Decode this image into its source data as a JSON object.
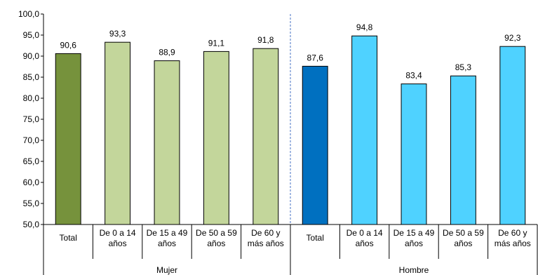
{
  "chart_data": {
    "type": "bar",
    "title": "",
    "xlabel": "",
    "ylabel": "",
    "ylim": [
      50,
      100
    ],
    "yticks": [
      "50,0",
      "55,0",
      "60,0",
      "65,0",
      "70,0",
      "75,0",
      "80,0",
      "85,0",
      "90,0",
      "95,0",
      "100,0"
    ],
    "grid": false,
    "legend": "none",
    "groups": [
      {
        "name": "Mujer",
        "categories": [
          [
            "Total"
          ],
          [
            "De 0 a 14",
            "años"
          ],
          [
            "De 15 a 49",
            "años"
          ],
          [
            "De 50 a 59",
            "años"
          ],
          [
            "De 60 y",
            "más años"
          ]
        ],
        "values": [
          90.6,
          93.3,
          88.9,
          91.1,
          91.8
        ],
        "labels": [
          "90,6",
          "93,3",
          "88,9",
          "91,1",
          "91,8"
        ],
        "colors": [
          "#76923c",
          "#c3d69b",
          "#c3d69b",
          "#c3d69b",
          "#c3d69b"
        ]
      },
      {
        "name": "Hombre",
        "categories": [
          [
            "Total"
          ],
          [
            "De 0 a 14",
            "años"
          ],
          [
            "De 15 a 49",
            "años"
          ],
          [
            "De 50 a 59",
            "años"
          ],
          [
            "De 60 y",
            "más años"
          ]
        ],
        "values": [
          87.6,
          94.8,
          83.4,
          85.3,
          92.3
        ],
        "labels": [
          "87,6",
          "94,8",
          "83,4",
          "85,3",
          "92,3"
        ],
        "colors": [
          "#0070c0",
          "#4fd2ff",
          "#4fd2ff",
          "#4fd2ff",
          "#4fd2ff"
        ]
      }
    ],
    "group_separator_color": "#4472c4"
  }
}
